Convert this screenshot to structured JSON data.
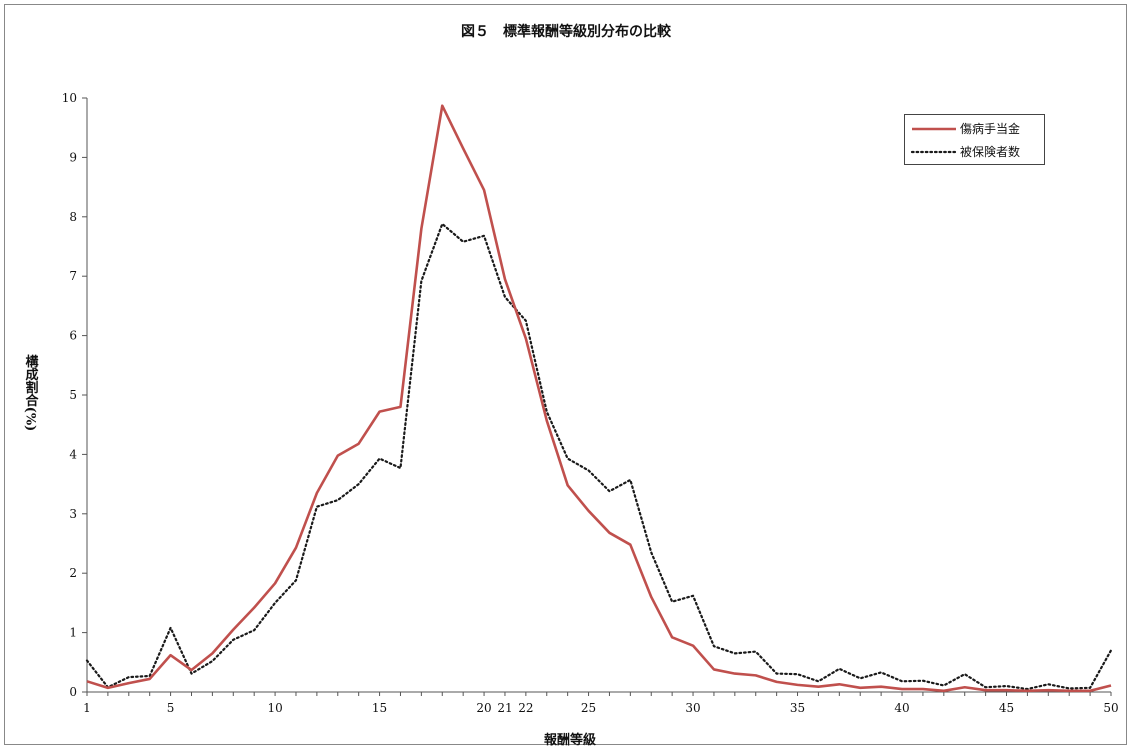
{
  "chart_data": {
    "type": "line",
    "title": "図５　標準報酬等級別分布の比較",
    "xlabel": "報酬等級",
    "ylabel": "構成割合(%)",
    "ylim": [
      0,
      10
    ],
    "y_ticks": [
      "0",
      "1",
      "2",
      "3",
      "4",
      "5",
      "6",
      "7",
      "8",
      "9",
      "10"
    ],
    "xlim": [
      1,
      50
    ],
    "x_ticks": [
      {
        "x": 1,
        "label": "1"
      },
      {
        "x": 5,
        "label": "5"
      },
      {
        "x": 10,
        "label": "10"
      },
      {
        "x": 15,
        "label": "15"
      },
      {
        "x": 20,
        "label": "20"
      },
      {
        "x": 21,
        "label": "21"
      },
      {
        "x": 22,
        "label": "22"
      },
      {
        "x": 25,
        "label": "25"
      },
      {
        "x": 30,
        "label": "30"
      },
      {
        "x": 35,
        "label": "35"
      },
      {
        "x": 40,
        "label": "40"
      },
      {
        "x": 45,
        "label": "45"
      },
      {
        "x": 50,
        "label": "50"
      }
    ],
    "grid": false,
    "legend_position": "top-right",
    "series": [
      {
        "name": "傷病手当金",
        "color": "#c0504d",
        "style": "solid",
        "values": [
          0.18,
          0.07,
          0.15,
          0.22,
          0.62,
          0.37,
          0.65,
          1.05,
          1.42,
          1.83,
          2.43,
          3.35,
          3.98,
          4.18,
          4.72,
          4.8,
          7.8,
          9.87,
          9.15,
          8.45,
          6.95,
          5.95,
          4.57,
          3.48,
          3.05,
          2.68,
          2.48,
          1.6,
          0.92,
          0.78,
          0.38,
          0.31,
          0.28,
          0.17,
          0.12,
          0.09,
          0.13,
          0.07,
          0.09,
          0.05,
          0.05,
          0.02,
          0.08,
          0.03,
          0.03,
          0.02,
          0.03,
          0.02,
          0.02,
          0.11
        ]
      },
      {
        "name": "被保険者数",
        "color": "#1a1a1a",
        "style": "dotted",
        "values": [
          0.53,
          0.08,
          0.25,
          0.27,
          1.08,
          0.31,
          0.52,
          0.88,
          1.04,
          1.5,
          1.88,
          3.12,
          3.23,
          3.5,
          3.93,
          3.77,
          6.92,
          7.88,
          7.58,
          7.68,
          6.65,
          6.25,
          4.72,
          3.93,
          3.73,
          3.38,
          3.57,
          2.35,
          1.52,
          1.62,
          0.77,
          0.65,
          0.68,
          0.31,
          0.3,
          0.18,
          0.39,
          0.23,
          0.33,
          0.18,
          0.19,
          0.11,
          0.3,
          0.08,
          0.1,
          0.05,
          0.13,
          0.06,
          0.07,
          0.7
        ]
      }
    ]
  }
}
